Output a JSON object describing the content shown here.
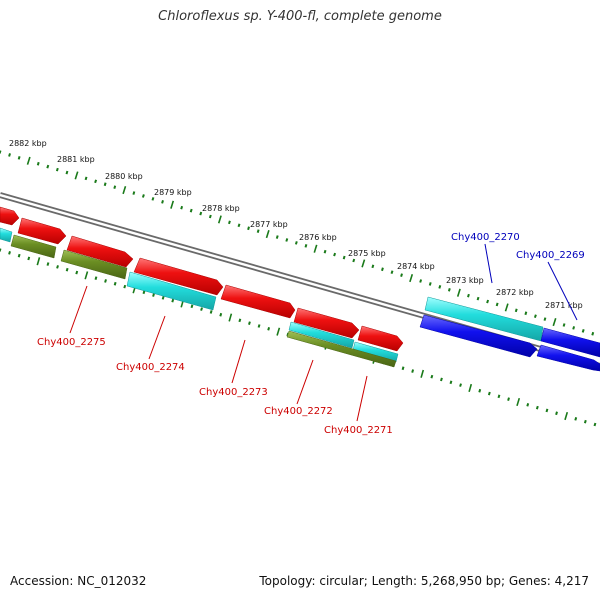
{
  "title": "Chloroflexus sp. Y-400-fl, complete genome",
  "footer": {
    "accession": "Accession: NC_012032",
    "stats": "Topology: circular; Length: 5,268,950 bp; Genes: 4,217"
  },
  "scale_labels": [
    "2882 kbp",
    "2881 kbp",
    "2880 kbp",
    "2879 kbp",
    "2878 kbp",
    "2877 kbp",
    "2876 kbp",
    "2875 kbp",
    "2874 kbp",
    "2873 kbp",
    "2872 kbp",
    "2871 kbp"
  ],
  "gene_labels": [
    "Chy400_2275",
    "Chy400_2274",
    "Chy400_2273",
    "Chy400_2272",
    "Chy400_2271",
    "Chy400_2270",
    "Chy400_2269"
  ],
  "colors": {
    "backbone": "#7a7a7a",
    "ticks": "#1a7a1a",
    "gene_red": "#ee1111",
    "gene_red_label": "#cc0000",
    "gene_blue": "#1111ee",
    "gene_blue_label": "#0000bb",
    "gene_cyan": "#22dddd",
    "gene_olive": "#6b8e23"
  }
}
